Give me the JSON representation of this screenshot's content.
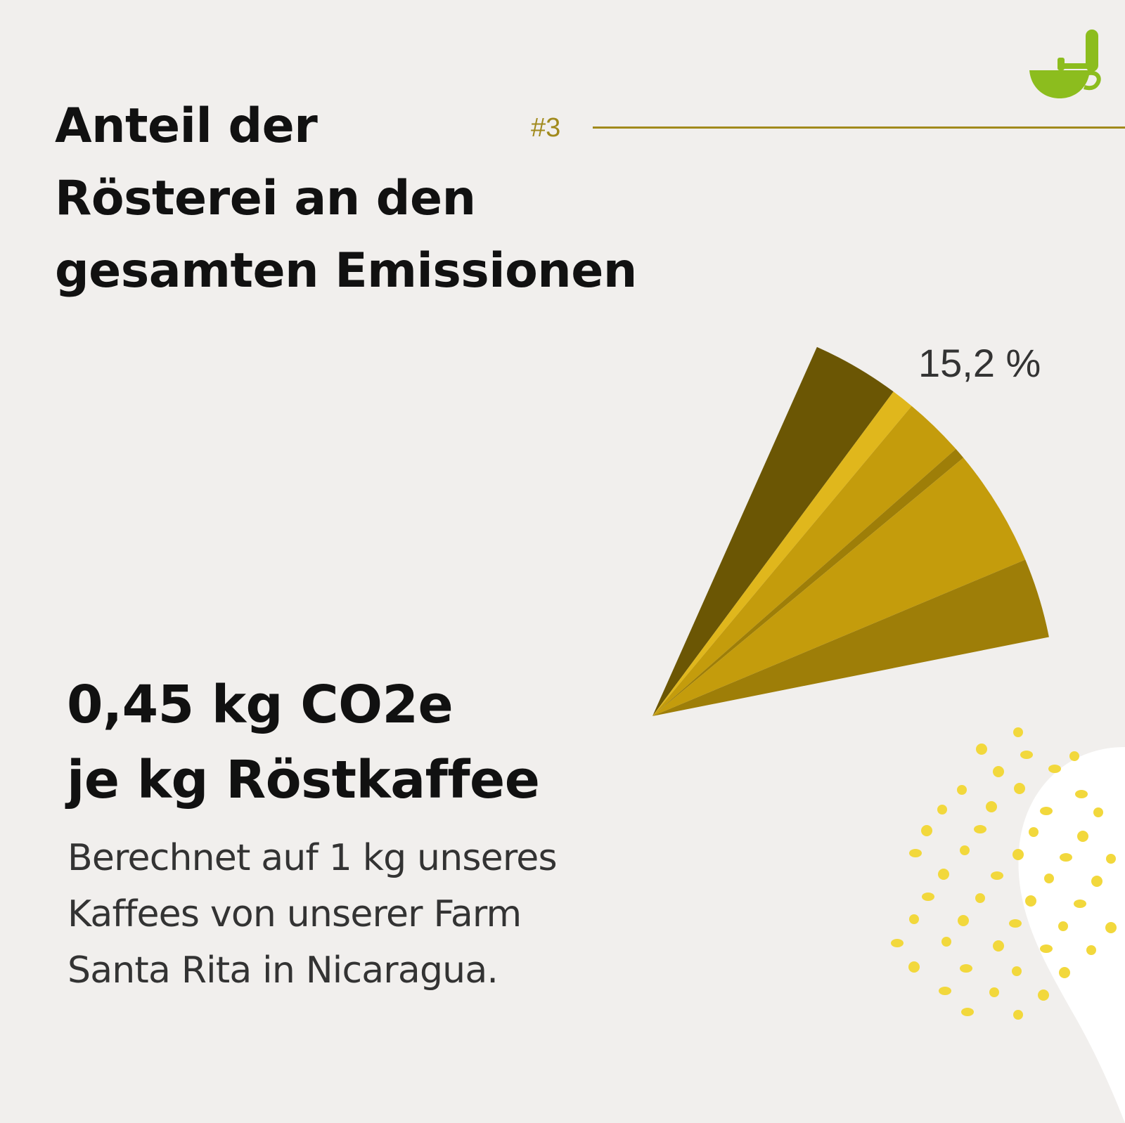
{
  "header": {
    "title_lines": [
      "Anteil der",
      "Rösterei an den",
      "gesamten Emissionen"
    ],
    "page_number": "#3"
  },
  "logo": {
    "icon": "coffee-cup-icon",
    "color": "#8cbd1e"
  },
  "chart_data": {
    "type": "pie",
    "title": "Anteil der Rösterei an den gesamten Emissionen",
    "slices": [
      {
        "label": "15,2 %",
        "value": 15.2,
        "shown": true
      }
    ],
    "colors": {
      "dark": "#6b5604",
      "mid": "#c49c0c",
      "bright": "#e0b71c",
      "deep": "#9e7e08"
    }
  },
  "kpi": {
    "lines": [
      "0,45 kg CO2e",
      "je kg Röstkaffee"
    ]
  },
  "description": {
    "lines": [
      "Berechnet auf 1 kg unseres",
      "Kaffees von unserer Farm",
      "Santa Rita in Nicaragua."
    ]
  },
  "decoration": {
    "dot_color": "#f2d83c",
    "blob_color": "#ffffff"
  },
  "colors": {
    "background": "#f1efed",
    "accent": "#a18a1c",
    "text": "#111111"
  }
}
